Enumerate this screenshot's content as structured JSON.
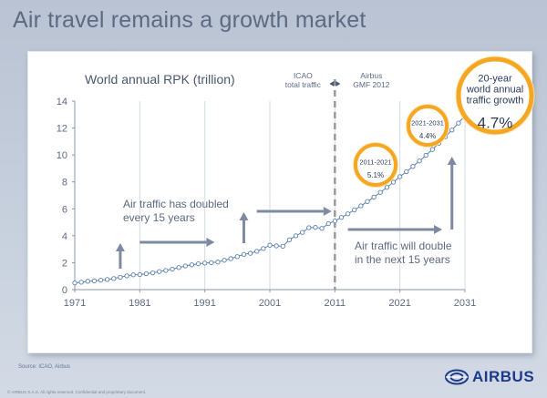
{
  "page": {
    "title": "Air travel remains a growth market",
    "source": "Source: ICAO, Airbus",
    "footer": "© AIRBUS S.A.S. All rights reserved. Confidential and proprietary document.",
    "logo_text": "AIRBUS",
    "colors": {
      "accent": "#f5a623",
      "series": "#5a7fb0",
      "text": "#5d6a82",
      "arrow": "#7d8aa2"
    }
  },
  "chart_data": {
    "type": "line",
    "title": "World annual RPK (trillion)",
    "xlabel": "",
    "ylabel": "",
    "xlim": [
      1971,
      2031
    ],
    "ylim": [
      0,
      14
    ],
    "x_ticks": [
      "1971",
      "1981",
      "1991",
      "2001",
      "2011",
      "2021",
      "2031"
    ],
    "y_ticks": [
      "0",
      "2",
      "4",
      "6",
      "8",
      "10",
      "12",
      "14"
    ],
    "grid": "vertical gridlines at decades",
    "series": [
      {
        "x": [
          1971,
          1972,
          1973,
          1974,
          1975,
          1976,
          1977,
          1978,
          1979,
          1980,
          1981,
          1982,
          1983,
          1984,
          1985,
          1986,
          1987,
          1988,
          1989,
          1990,
          1991,
          1992,
          1993,
          1994,
          1995,
          1996,
          1997,
          1998,
          1999,
          2000,
          2001,
          2002,
          2003,
          2004,
          2005,
          2006,
          2007,
          2008,
          2009,
          2010,
          2011,
          2012,
          2013,
          2014,
          2015,
          2016,
          2017,
          2018,
          2019,
          2020,
          2021,
          2022,
          2023,
          2024,
          2025,
          2026,
          2027,
          2028,
          2029,
          2030,
          2031
        ],
        "y": [
          0.5,
          0.55,
          0.62,
          0.65,
          0.7,
          0.75,
          0.82,
          0.92,
          1.02,
          1.1,
          1.12,
          1.18,
          1.24,
          1.34,
          1.42,
          1.52,
          1.64,
          1.76,
          1.84,
          1.92,
          1.97,
          2.0,
          2.05,
          2.18,
          2.3,
          2.45,
          2.62,
          2.7,
          2.85,
          3.05,
          3.3,
          3.25,
          3.22,
          3.7,
          4.0,
          4.25,
          4.6,
          4.62,
          4.55,
          4.9,
          5.1,
          5.36,
          5.63,
          5.92,
          6.22,
          6.54,
          6.87,
          7.22,
          7.59,
          7.98,
          8.39,
          8.76,
          9.15,
          9.55,
          9.97,
          10.41,
          10.87,
          11.35,
          11.85,
          12.37,
          12.91
        ]
      }
    ],
    "annotations": {
      "icao_label": "ICAO\ntotal traffic",
      "airbus_label": "Airbus\nGMF 2012",
      "doubled_text": "Air traffic has doubled\nevery 15 years",
      "will_double_text": "Air traffic will double\nin the next 15 years",
      "bubble_2011_2021": {
        "period": "2011-2021",
        "rate": "5.1%"
      },
      "bubble_2021_2031": {
        "period": "2021-2031",
        "rate": "4.4%"
      },
      "bubble_20yr": {
        "label": "20-year\nworld annual\ntraffic growth",
        "rate": "4.7%"
      }
    }
  }
}
